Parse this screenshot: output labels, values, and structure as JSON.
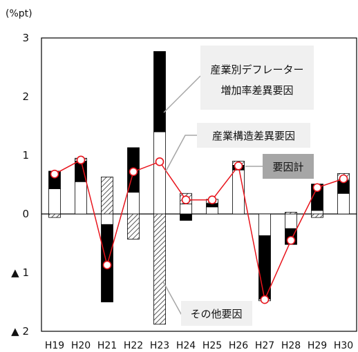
{
  "chart_data": {
    "type": "bar",
    "unit_label": "(%pt)",
    "categories": [
      "H19",
      "H20",
      "H21",
      "H22",
      "H23",
      "H24",
      "H25",
      "H26",
      "H27",
      "H28",
      "H29",
      "H30"
    ],
    "y_ticks": [
      {
        "value": 3,
        "label": "3"
      },
      {
        "value": 2,
        "label": "2"
      },
      {
        "value": 1,
        "label": "1"
      },
      {
        "value": 0,
        "label": "0"
      },
      {
        "value": -1,
        "label": "▲ 1"
      },
      {
        "value": -2,
        "label": "▲ 2"
      }
    ],
    "ylim": [
      -2,
      3
    ],
    "grid": false,
    "series": [
      {
        "name": "産業構造差異要因",
        "style": "white",
        "values": [
          0.43,
          0.55,
          -0.18,
          0.37,
          1.4,
          0.17,
          0.12,
          0.75,
          -0.37,
          -0.25,
          0.06,
          0.35
        ]
      },
      {
        "name": "産業別デフレーター増加率差異要因",
        "style": "black",
        "values": [
          0.3,
          0.35,
          -1.32,
          0.76,
          1.37,
          -0.11,
          0.06,
          0.08,
          -1.08,
          -0.27,
          0.45,
          0.22
        ]
      },
      {
        "name": "その他要因",
        "style": "hatched",
        "values": [
          -0.06,
          0.05,
          0.63,
          -0.43,
          -1.88,
          0.18,
          0.07,
          0.07,
          -0.03,
          0.03,
          -0.06,
          0.12
        ]
      },
      {
        "name": "要因計",
        "style": "line",
        "values": [
          0.68,
          0.92,
          -0.87,
          0.72,
          0.89,
          0.24,
          0.24,
          0.82,
          -1.46,
          -0.45,
          0.45,
          0.6
        ]
      }
    ],
    "annotations": [
      {
        "text": "産業別デフレーター",
        "text2": "増加率差異要因",
        "series": 1
      },
      {
        "text": "産業構造差異要因",
        "series": 0
      },
      {
        "text": "要因計",
        "series": 3
      },
      {
        "text": "その他要因",
        "series": 2
      }
    ],
    "colors": {
      "black_segment": "#000000",
      "white_segment": "#ffffff",
      "hatch": "#555555",
      "line": "#e8141c",
      "callout_bg": "#f0f0f0",
      "total_callout_bg": "#a6a6a6",
      "leader": "#a6a6a6"
    }
  }
}
